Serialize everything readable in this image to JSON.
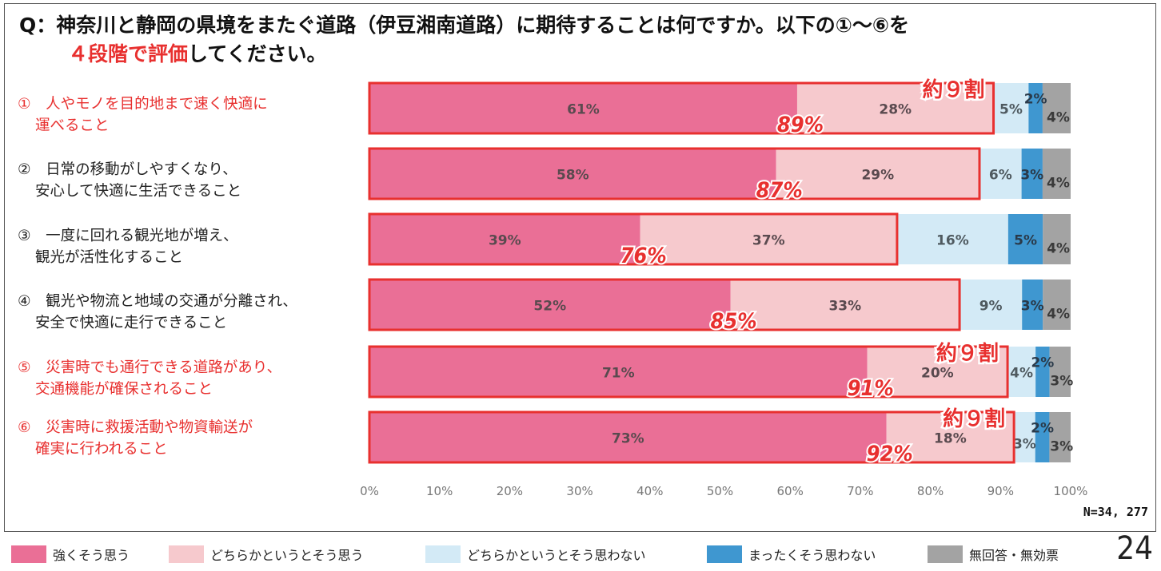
{
  "title": {
    "line1": "Q：神奈川と静岡の県境をまたぐ道路（伊豆湘南道路）に期待することは何ですか。以下の①～⑥を",
    "line2_red": "４段階で評価",
    "line2_rest": "してください。"
  },
  "questions": [
    {
      "line1": "①　人やモノを目的地まで速く快適に",
      "line2": "運べること",
      "color": "red"
    },
    {
      "line1": "②　日常の移動がしやすくなり、",
      "line2": "安心して快適に生活できること",
      "color": "black"
    },
    {
      "line1": "③　一度に回れる観光地が増え、",
      "line2": "観光が活性化すること",
      "color": "black"
    },
    {
      "line1": "④　観光や物流と地域の交通が分離され、",
      "line2": "安全で快適に走行できること",
      "color": "black"
    },
    {
      "line1": "⑤　災害時でも通行できる道路があり、",
      "line2": "交通機能が確保されること",
      "color": "red"
    },
    {
      "line1": "⑥　災害時に救援活動や物資輸送が",
      "line2": "確実に行われること",
      "color": "red"
    }
  ],
  "sample_size": "N=34, 277",
  "page_number": "24",
  "colors": {
    "strongly_agree": "#ea6f96",
    "somewhat_agree": "#f6c9cd",
    "somewhat_disagree": "#d3eaf6",
    "strongly_disagree": "#3f97d0",
    "no_answer": "#a3a3a3",
    "highlight_red": "#e8302f"
  },
  "chart_data": {
    "type": "bar",
    "orientation": "horizontal",
    "stacked": true,
    "categories": [
      "①",
      "②",
      "③",
      "④",
      "⑤",
      "⑥"
    ],
    "series": [
      {
        "name": "強くそう思う",
        "values": [
          61,
          58,
          39,
          52,
          71,
          73
        ]
      },
      {
        "name": "どちらかというとそう思う",
        "values": [
          28,
          29,
          37,
          33,
          20,
          18
        ]
      },
      {
        "name": "どちらかというとそう思わない",
        "values": [
          5,
          6,
          16,
          9,
          4,
          3
        ]
      },
      {
        "name": "まったくそう思わない",
        "values": [
          2,
          3,
          5,
          3,
          2,
          2
        ]
      },
      {
        "name": "無回答・無効票",
        "values": [
          4,
          4,
          4,
          4,
          3,
          3
        ]
      }
    ],
    "segment_labels": [
      [
        "61%",
        "28%",
        "5%",
        "2%",
        "4%"
      ],
      [
        "58%",
        "29%",
        "6%",
        "3%",
        "4%"
      ],
      [
        "39%",
        "37%",
        "16%",
        "5%",
        "4%"
      ],
      [
        "52%",
        "33%",
        "9%",
        "3%",
        "4%"
      ],
      [
        "71%",
        "20%",
        "4%",
        "2%",
        "3%"
      ],
      [
        "73%",
        "18%",
        "3%",
        "2%",
        "3%"
      ]
    ],
    "agree_totals": [
      "89%",
      "87%",
      "76%",
      "85%",
      "91%",
      "92%"
    ],
    "callouts": [
      "約９割",
      "",
      "",
      "",
      "約９割",
      "約９割"
    ],
    "x_ticks": [
      "0%",
      "10%",
      "20%",
      "30%",
      "40%",
      "50%",
      "60%",
      "70%",
      "80%",
      "90%",
      "100%"
    ],
    "xlim": [
      0,
      100
    ],
    "grid": false,
    "legend_position": "bottom"
  }
}
